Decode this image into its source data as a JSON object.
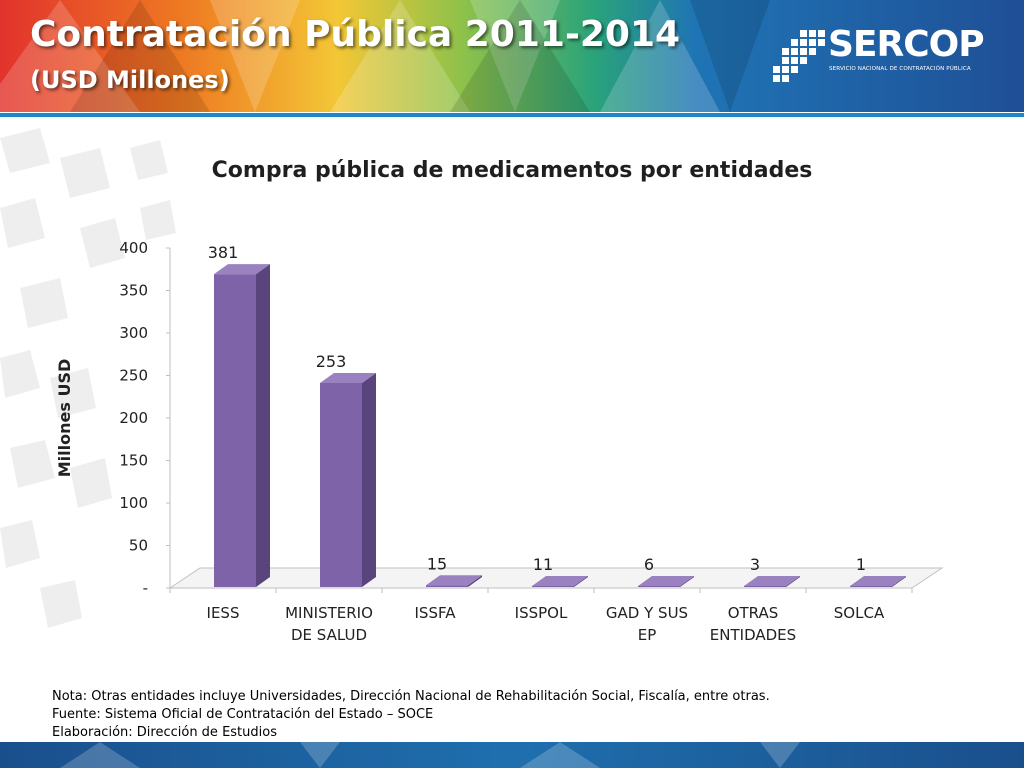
{
  "header": {
    "title": "Contratación Pública 2011-2014",
    "subtitle": "(USD Millones)",
    "logo_name": "SERCOP",
    "logo_tagline": "SERVICIO NACIONAL DE CONTRATACIÓN PÚBLICA"
  },
  "chart_data": {
    "type": "bar",
    "title": "Compra pública de medicamentos por entidades",
    "ylabel": "Millones USD",
    "xlabel": "",
    "ylim": [
      0,
      400
    ],
    "yticks": [
      0,
      50,
      100,
      150,
      200,
      250,
      300,
      350,
      400
    ],
    "ytick_labels": [
      "-",
      "50",
      "100",
      "150",
      "200",
      "250",
      "300",
      "350",
      "400"
    ],
    "categories": [
      [
        "IESS"
      ],
      [
        "MINISTERIO",
        "DE SALUD"
      ],
      [
        "ISSFA"
      ],
      [
        "ISSPOL"
      ],
      [
        "GAD Y SUS",
        "EP"
      ],
      [
        "OTRAS",
        "ENTIDADES"
      ],
      [
        "SOLCA"
      ]
    ],
    "values": [
      381,
      253,
      15,
      11,
      6,
      3,
      1
    ],
    "value_labels": [
      "381",
      "253",
      "15",
      "11",
      "6",
      "3",
      "1"
    ],
    "bar_color": "#7f63a8",
    "grid": false,
    "legend": "none",
    "style": "3d-column"
  },
  "notes": [
    "Nota: Otras entidades incluye Universidades, Dirección Nacional de Rehabilitación Social, Fiscalía, entre otras.",
    "Fuente: Sistema Oficial de Contratación del Estado – SOCE",
    "Elaboración: Dirección de Estudios"
  ],
  "colors": {
    "bar_front": "#7f63a8",
    "bar_side": "#5a447c",
    "bar_top": "#9a82c0",
    "accent_blue": "#1a75bc"
  }
}
